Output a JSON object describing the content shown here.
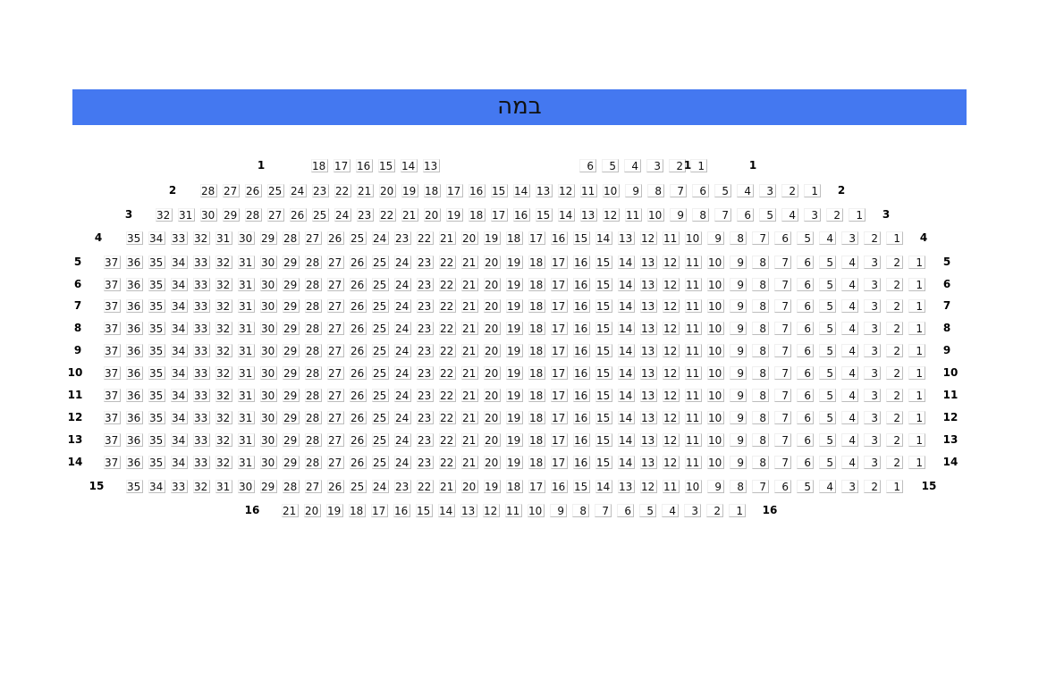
{
  "stage": {
    "label": "במה",
    "color": "#4478f0"
  },
  "rows": [
    {
      "label": "1",
      "inline_label": "1",
      "seats": [
        18,
        17,
        16,
        15,
        14,
        13,
        6,
        5,
        4,
        3,
        2,
        1
      ]
    },
    {
      "label": "2",
      "seats": [
        28,
        27,
        26,
        25,
        24,
        23,
        22,
        21,
        20,
        19,
        18,
        17,
        16,
        15,
        14,
        13,
        12,
        11,
        10,
        9,
        8,
        7,
        6,
        5,
        4,
        3,
        2,
        1
      ]
    },
    {
      "label": "3",
      "seats": [
        32,
        31,
        30,
        29,
        28,
        27,
        26,
        25,
        24,
        23,
        22,
        21,
        20,
        19,
        18,
        17,
        16,
        15,
        14,
        13,
        12,
        11,
        10,
        9,
        8,
        7,
        6,
        5,
        4,
        3,
        2,
        1
      ]
    },
    {
      "label": "4",
      "seats": [
        35,
        34,
        33,
        32,
        31,
        30,
        29,
        28,
        27,
        26,
        25,
        24,
        23,
        22,
        21,
        20,
        19,
        18,
        17,
        16,
        15,
        14,
        13,
        12,
        11,
        10,
        9,
        8,
        7,
        6,
        5,
        4,
        3,
        2,
        1
      ]
    },
    {
      "label": "5",
      "seats": [
        37,
        36,
        35,
        34,
        33,
        32,
        31,
        30,
        29,
        28,
        27,
        26,
        25,
        24,
        23,
        22,
        21,
        20,
        19,
        18,
        17,
        16,
        15,
        14,
        13,
        12,
        11,
        10,
        9,
        8,
        7,
        6,
        5,
        4,
        3,
        2,
        1
      ]
    },
    {
      "label": "6",
      "seats": [
        37,
        36,
        35,
        34,
        33,
        32,
        31,
        30,
        29,
        28,
        27,
        26,
        25,
        24,
        23,
        22,
        21,
        20,
        19,
        18,
        17,
        16,
        15,
        14,
        13,
        12,
        11,
        10,
        9,
        8,
        7,
        6,
        5,
        4,
        3,
        2,
        1
      ]
    },
    {
      "label": "7",
      "seats": [
        37,
        36,
        35,
        34,
        33,
        32,
        31,
        30,
        29,
        28,
        27,
        26,
        25,
        24,
        23,
        22,
        21,
        20,
        19,
        18,
        17,
        16,
        15,
        14,
        13,
        12,
        11,
        10,
        9,
        8,
        7,
        6,
        5,
        4,
        3,
        2,
        1
      ]
    },
    {
      "label": "8",
      "seats": [
        37,
        36,
        35,
        34,
        33,
        32,
        31,
        30,
        29,
        28,
        27,
        26,
        25,
        24,
        23,
        22,
        21,
        20,
        19,
        18,
        17,
        16,
        15,
        14,
        13,
        12,
        11,
        10,
        9,
        8,
        7,
        6,
        5,
        4,
        3,
        2,
        1
      ]
    },
    {
      "label": "9",
      "seats": [
        37,
        36,
        35,
        34,
        33,
        32,
        31,
        30,
        29,
        28,
        27,
        26,
        25,
        24,
        23,
        22,
        21,
        20,
        19,
        18,
        17,
        16,
        15,
        14,
        13,
        12,
        11,
        10,
        9,
        8,
        7,
        6,
        5,
        4,
        3,
        2,
        1
      ]
    },
    {
      "label": "10",
      "seats": [
        37,
        36,
        35,
        34,
        33,
        32,
        31,
        30,
        29,
        28,
        27,
        26,
        25,
        24,
        23,
        22,
        21,
        20,
        19,
        18,
        17,
        16,
        15,
        14,
        13,
        12,
        11,
        10,
        9,
        8,
        7,
        6,
        5,
        4,
        3,
        2,
        1
      ]
    },
    {
      "label": "11",
      "seats": [
        37,
        36,
        35,
        34,
        33,
        32,
        31,
        30,
        29,
        28,
        27,
        26,
        25,
        24,
        23,
        22,
        21,
        20,
        19,
        18,
        17,
        16,
        15,
        14,
        13,
        12,
        11,
        10,
        9,
        8,
        7,
        6,
        5,
        4,
        3,
        2,
        1
      ]
    },
    {
      "label": "12",
      "seats": [
        37,
        36,
        35,
        34,
        33,
        32,
        31,
        30,
        29,
        28,
        27,
        26,
        25,
        24,
        23,
        22,
        21,
        20,
        19,
        18,
        17,
        16,
        15,
        14,
        13,
        12,
        11,
        10,
        9,
        8,
        7,
        6,
        5,
        4,
        3,
        2,
        1
      ]
    },
    {
      "label": "13",
      "seats": [
        37,
        36,
        35,
        34,
        33,
        32,
        31,
        30,
        29,
        28,
        27,
        26,
        25,
        24,
        23,
        22,
        21,
        20,
        19,
        18,
        17,
        16,
        15,
        14,
        13,
        12,
        11,
        10,
        9,
        8,
        7,
        6,
        5,
        4,
        3,
        2,
        1
      ]
    },
    {
      "label": "14",
      "seats": [
        37,
        36,
        35,
        34,
        33,
        32,
        31,
        30,
        29,
        28,
        27,
        26,
        25,
        24,
        23,
        22,
        21,
        20,
        19,
        18,
        17,
        16,
        15,
        14,
        13,
        12,
        11,
        10,
        9,
        8,
        7,
        6,
        5,
        4,
        3,
        2,
        1
      ]
    },
    {
      "label": "15",
      "seats": [
        35,
        34,
        33,
        32,
        31,
        30,
        29,
        28,
        27,
        26,
        25,
        24,
        23,
        22,
        21,
        20,
        19,
        18,
        17,
        16,
        15,
        14,
        13,
        12,
        11,
        10,
        9,
        8,
        7,
        6,
        5,
        4,
        3,
        2,
        1
      ]
    },
    {
      "label": "16",
      "seats": [
        21,
        20,
        19,
        18,
        17,
        16,
        15,
        14,
        13,
        12,
        11,
        10,
        9,
        8,
        7,
        6,
        5,
        4,
        3,
        2,
        1
      ]
    }
  ]
}
